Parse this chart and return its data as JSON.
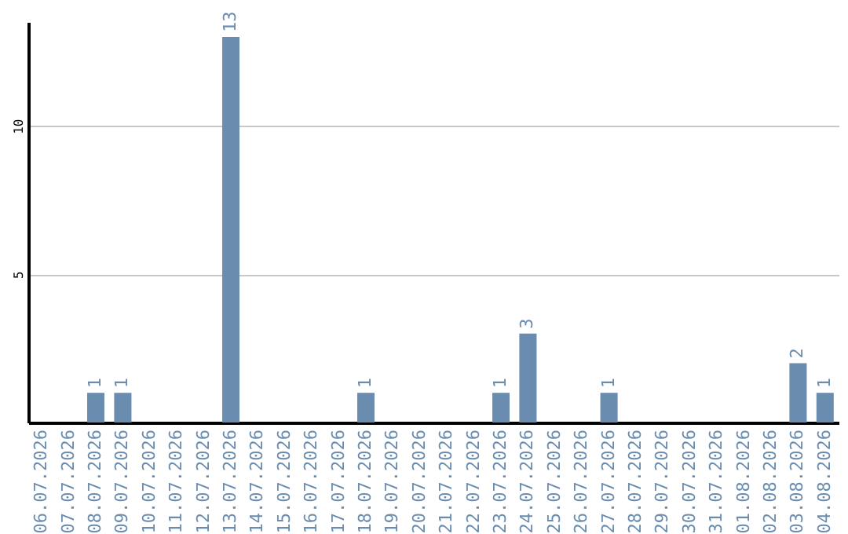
{
  "chart_data": {
    "type": "bar",
    "categories": [
      "06.07.2026",
      "07.07.2026",
      "08.07.2026",
      "09.07.2026",
      "10.07.2026",
      "11.07.2026",
      "12.07.2026",
      "13.07.2026",
      "14.07.2026",
      "15.07.2026",
      "16.07.2026",
      "17.07.2026",
      "18.07.2026",
      "19.07.2026",
      "20.07.2026",
      "21.07.2026",
      "22.07.2026",
      "23.07.2026",
      "24.07.2026",
      "25.07.2026",
      "26.07.2026",
      "27.07.2026",
      "28.07.2026",
      "29.07.2026",
      "30.07.2026",
      "31.07.2026",
      "01.08.2026",
      "02.08.2026",
      "03.08.2026",
      "04.08.2026"
    ],
    "values": [
      0,
      0,
      1,
      1,
      0,
      0,
      0,
      13,
      0,
      0,
      0,
      0,
      1,
      0,
      0,
      0,
      0,
      1,
      3,
      0,
      0,
      1,
      0,
      0,
      0,
      0,
      0,
      0,
      2,
      1
    ],
    "value_labels": [
      null,
      null,
      "1",
      "1",
      null,
      null,
      null,
      "13",
      null,
      null,
      null,
      null,
      "1",
      null,
      null,
      null,
      null,
      "1",
      "3",
      null,
      null,
      "1",
      null,
      null,
      null,
      null,
      null,
      null,
      "2",
      "1"
    ],
    "color": "#6a8caf",
    "ylim": [
      0,
      13.5
    ],
    "yticks": [
      5,
      10
    ],
    "grid": "y"
  }
}
